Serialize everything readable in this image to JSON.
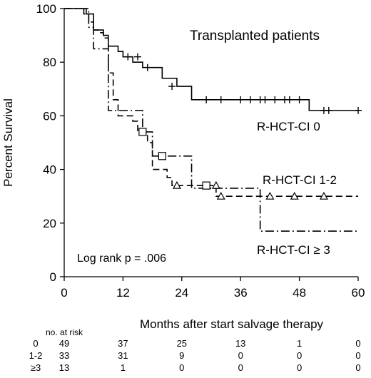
{
  "chart_data": {
    "type": "line",
    "title": "Transplanted patients",
    "xlabel": "Months after start salvage therapy",
    "ylabel": "Percent Survival",
    "xlim": [
      0,
      60
    ],
    "ylim": [
      0,
      100
    ],
    "x_ticks": [
      "0",
      "12",
      "24",
      "36",
      "48",
      "60"
    ],
    "y_ticks": [
      "0",
      "20",
      "40",
      "60",
      "80",
      "100"
    ],
    "grid": false,
    "annotation": "Log rank p = .006",
    "series": [
      {
        "name": "R-HCT-CI 0",
        "line_style": "solid",
        "censor_marker": "plus",
        "steps": [
          [
            0,
            100
          ],
          [
            4.5,
            98
          ],
          [
            6,
            92
          ],
          [
            8,
            90
          ],
          [
            9,
            86
          ],
          [
            11,
            84
          ],
          [
            12,
            82
          ],
          [
            14,
            80
          ],
          [
            16,
            78
          ],
          [
            20,
            74
          ],
          [
            23,
            71
          ],
          [
            26,
            66
          ],
          [
            50,
            62
          ],
          [
            60,
            62
          ]
        ],
        "censored": [
          [
            13,
            82
          ],
          [
            15,
            82
          ],
          [
            17,
            78
          ],
          [
            22,
            71
          ],
          [
            29,
            66
          ],
          [
            32,
            66
          ],
          [
            36,
            66
          ],
          [
            38,
            66
          ],
          [
            40,
            66
          ],
          [
            41,
            66
          ],
          [
            43,
            66
          ],
          [
            45,
            66
          ],
          [
            46,
            66
          ],
          [
            48,
            66
          ],
          [
            53,
            62
          ],
          [
            54,
            62
          ],
          [
            60,
            62
          ]
        ]
      },
      {
        "name": "R-HCT-CI 1-2",
        "line_style": "dashed",
        "censor_marker": "triangle",
        "steps": [
          [
            0,
            100
          ],
          [
            4,
            98
          ],
          [
            5,
            95
          ],
          [
            6,
            92
          ],
          [
            7,
            91
          ],
          [
            8,
            89
          ],
          [
            9,
            76
          ],
          [
            10,
            66
          ],
          [
            11,
            60
          ],
          [
            14,
            58
          ],
          [
            15,
            54
          ],
          [
            17,
            50
          ],
          [
            18,
            40
          ],
          [
            20,
            40
          ],
          [
            21,
            37
          ],
          [
            22,
            34
          ],
          [
            31,
            30
          ],
          [
            60,
            30
          ]
        ],
        "censored": [
          [
            23,
            34
          ],
          [
            31,
            34
          ],
          [
            32,
            30
          ],
          [
            42,
            30
          ],
          [
            47,
            30
          ],
          [
            53,
            30
          ]
        ]
      },
      {
        "name": "R-HCT-CI ≥ 3",
        "line_style": "dash-dot",
        "censor_marker": "square",
        "steps": [
          [
            0,
            100
          ],
          [
            5,
            93
          ],
          [
            6,
            85
          ],
          [
            8,
            85
          ],
          [
            9,
            62
          ],
          [
            16,
            54
          ],
          [
            18,
            45
          ],
          [
            21,
            45
          ],
          [
            26,
            33
          ],
          [
            40,
            33
          ],
          [
            40,
            17
          ],
          [
            60,
            17
          ]
        ],
        "censored": [
          [
            16,
            54
          ],
          [
            20,
            45
          ],
          [
            29,
            34
          ]
        ]
      }
    ],
    "risk_table": {
      "header": "no. at risk",
      "rows": [
        {
          "label": "0",
          "values": [
            "49",
            "37",
            "25",
            "13",
            "1",
            "0"
          ]
        },
        {
          "label": "1-2",
          "values": [
            "33",
            "31",
            "9",
            "0",
            "0",
            "0"
          ]
        },
        {
          "label": "≥3",
          "values": [
            "13",
            "1",
            "0",
            "0",
            "0",
            "0"
          ]
        }
      ]
    }
  }
}
